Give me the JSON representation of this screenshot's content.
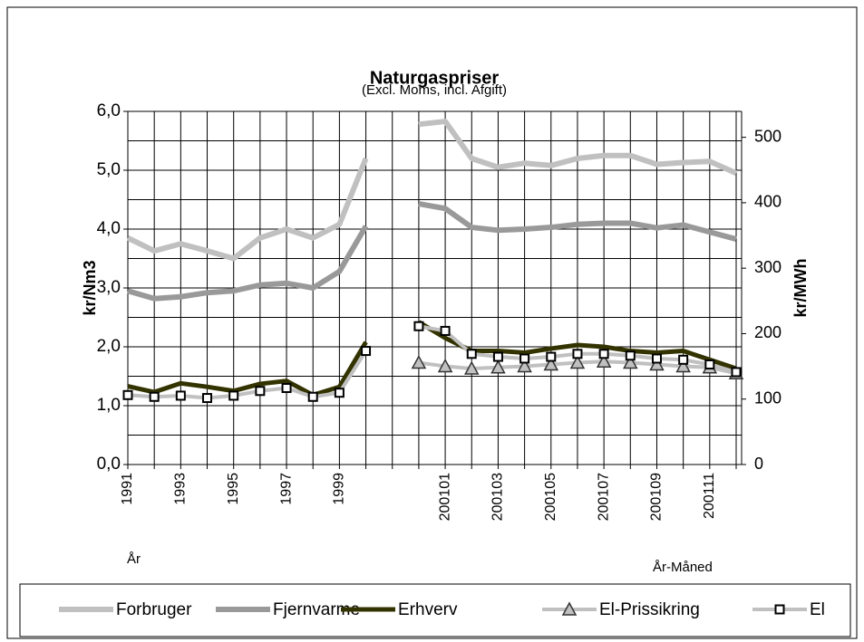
{
  "chart_data": {
    "type": "line",
    "title": "Naturgaspriser",
    "subtitle": "(Excl. Moms, incl. Afgift)",
    "ylabel": "kr/Nm3",
    "y2label": "kr/MWh",
    "xlabel": "År",
    "xlabel2": "År-Måned",
    "categories": [
      "1991",
      null,
      "1993",
      null,
      "1995",
      null,
      "1997",
      null,
      "1999",
      null,
      null,
      null,
      "200101",
      null,
      "200103",
      null,
      "200105",
      null,
      "200107",
      null,
      "200109",
      null,
      "200111",
      null
    ],
    "ylim": [
      0,
      6
    ],
    "yticks": [
      {
        "value": 0,
        "label": "0,0"
      },
      {
        "value": 1,
        "label": "1,0"
      },
      {
        "value": 2,
        "label": "2,0"
      },
      {
        "value": 3,
        "label": "3,0"
      },
      {
        "value": 4,
        "label": "4,0"
      },
      {
        "value": 5,
        "label": "5,0"
      },
      {
        "value": 6,
        "label": "6,0"
      }
    ],
    "ygrid": [
      0,
      0.5,
      1,
      1.5,
      2,
      2.5,
      3,
      3.5,
      4,
      4.5,
      5,
      5.5,
      6
    ],
    "y2lim": [
      0,
      539.6
    ],
    "y2ticks": [
      0,
      100,
      200,
      300,
      400,
      500
    ],
    "grid": true,
    "series": [
      {
        "name": "Forbruger",
        "color": "#c0c0c0",
        "width": 6,
        "marker": null,
        "values": [
          3.85,
          3.63,
          3.75,
          3.63,
          3.5,
          3.85,
          4.0,
          3.85,
          4.08,
          5.2,
          null,
          5.78,
          5.83,
          5.2,
          5.05,
          5.12,
          5.08,
          5.2,
          5.25,
          5.25,
          5.1,
          5.13,
          5.15,
          4.95
        ]
      },
      {
        "name": "Fjernvarme",
        "color": "#999999",
        "width": 6,
        "marker": null,
        "values": [
          2.95,
          2.82,
          2.85,
          2.92,
          2.95,
          3.05,
          3.08,
          3.0,
          3.28,
          4.05,
          null,
          4.43,
          4.35,
          4.03,
          3.98,
          4.0,
          4.03,
          4.08,
          4.1,
          4.1,
          4.02,
          4.07,
          3.95,
          3.83
        ]
      },
      {
        "name": "Erhverv",
        "color": "#333300",
        "width": 5,
        "marker": null,
        "values": [
          1.33,
          1.23,
          1.38,
          1.32,
          1.25,
          1.37,
          1.42,
          1.18,
          1.32,
          2.08,
          null,
          2.42,
          2.15,
          1.93,
          1.93,
          1.9,
          1.97,
          2.03,
          2.0,
          1.93,
          1.9,
          1.93,
          1.78,
          1.63
        ]
      },
      {
        "name": "El-Prissikring",
        "color": "#c0c0c0",
        "width": 4,
        "marker": "triangle",
        "values": [
          null,
          null,
          null,
          null,
          null,
          null,
          null,
          null,
          null,
          null,
          null,
          1.73,
          1.67,
          1.63,
          1.65,
          1.67,
          1.7,
          1.73,
          1.75,
          1.73,
          1.7,
          1.67,
          1.65,
          1.55
        ]
      },
      {
        "name": "El",
        "color": "#c0c0c0",
        "width": 4,
        "marker": "square",
        "values": [
          1.18,
          1.15,
          1.17,
          1.13,
          1.17,
          1.25,
          1.3,
          1.15,
          1.22,
          1.93,
          null,
          2.35,
          2.27,
          1.88,
          1.83,
          1.8,
          1.83,
          1.88,
          1.88,
          1.85,
          1.8,
          1.78,
          1.7,
          1.57
        ]
      }
    ]
  }
}
